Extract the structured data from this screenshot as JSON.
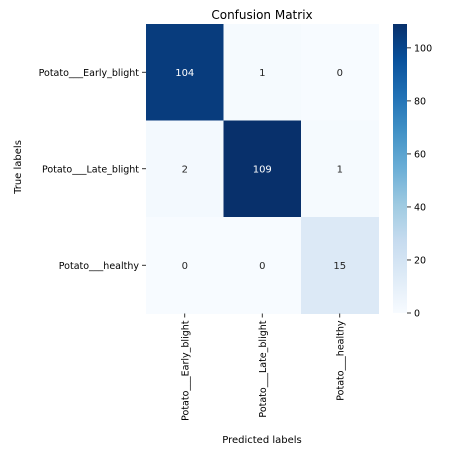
{
  "chart_data": {
    "type": "heatmap",
    "title": "Confusion Matrix",
    "xlabel": "Predicted labels",
    "ylabel": "True labels",
    "x_categories": [
      "Potato___Early_blight",
      "Potato___Late_blight",
      "Potato___healthy"
    ],
    "y_categories": [
      "Potato___Early_blight",
      "Potato___Late_blight",
      "Potato___healthy"
    ],
    "values": [
      [
        104,
        1,
        0
      ],
      [
        2,
        109,
        1
      ],
      [
        0,
        0,
        15
      ]
    ],
    "colormap": "Blues",
    "colorbar": {
      "min": 0,
      "max": 109,
      "ticks": [
        0,
        20,
        40,
        60,
        80,
        100
      ]
    },
    "grid": false
  }
}
